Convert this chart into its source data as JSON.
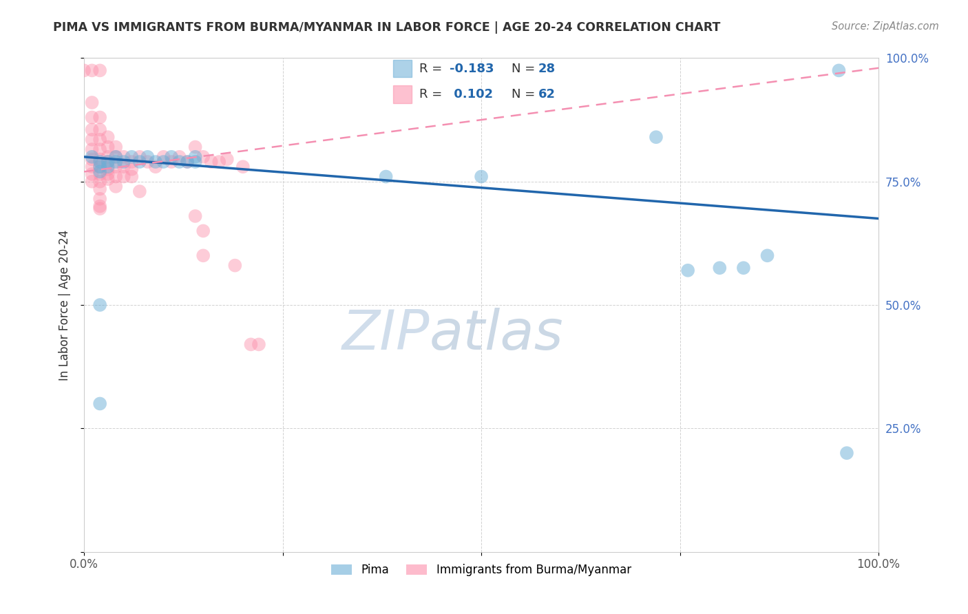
{
  "title": "PIMA VS IMMIGRANTS FROM BURMA/MYANMAR IN LABOR FORCE | AGE 20-24 CORRELATION CHART",
  "source": "Source: ZipAtlas.com",
  "ylabel": "In Labor Force | Age 20-24",
  "xlim": [
    0,
    1.0
  ],
  "ylim": [
    0,
    1.0
  ],
  "blue_color": "#6baed6",
  "pink_color": "#fc8faa",
  "blue_line_color": "#2166ac",
  "pink_line_color": "#f48fb1",
  "background_color": "#ffffff",
  "watermark_zip": "ZIP",
  "watermark_atlas": "atlas",
  "blue_points": [
    [
      0.01,
      0.8
    ],
    [
      0.02,
      0.79
    ],
    [
      0.02,
      0.78
    ],
    [
      0.02,
      0.77
    ],
    [
      0.03,
      0.79
    ],
    [
      0.03,
      0.78
    ],
    [
      0.04,
      0.8
    ],
    [
      0.04,
      0.79
    ],
    [
      0.05,
      0.79
    ],
    [
      0.06,
      0.8
    ],
    [
      0.07,
      0.79
    ],
    [
      0.08,
      0.8
    ],
    [
      0.09,
      0.79
    ],
    [
      0.1,
      0.79
    ],
    [
      0.11,
      0.8
    ],
    [
      0.12,
      0.79
    ],
    [
      0.13,
      0.79
    ],
    [
      0.14,
      0.8
    ],
    [
      0.14,
      0.79
    ],
    [
      0.38,
      0.76
    ],
    [
      0.5,
      0.76
    ],
    [
      0.72,
      0.84
    ],
    [
      0.76,
      0.57
    ],
    [
      0.8,
      0.575
    ],
    [
      0.83,
      0.575
    ],
    [
      0.86,
      0.6
    ],
    [
      0.95,
      0.975
    ],
    [
      0.96,
      0.2
    ],
    [
      0.02,
      0.5
    ],
    [
      0.02,
      0.3
    ]
  ],
  "pink_points": [
    [
      0.0,
      0.975
    ],
    [
      0.01,
      0.975
    ],
    [
      0.01,
      0.91
    ],
    [
      0.01,
      0.88
    ],
    [
      0.01,
      0.855
    ],
    [
      0.01,
      0.835
    ],
    [
      0.01,
      0.815
    ],
    [
      0.01,
      0.795
    ],
    [
      0.01,
      0.78
    ],
    [
      0.01,
      0.765
    ],
    [
      0.01,
      0.75
    ],
    [
      0.02,
      0.975
    ],
    [
      0.02,
      0.88
    ],
    [
      0.02,
      0.855
    ],
    [
      0.02,
      0.835
    ],
    [
      0.02,
      0.815
    ],
    [
      0.02,
      0.795
    ],
    [
      0.02,
      0.78
    ],
    [
      0.02,
      0.765
    ],
    [
      0.02,
      0.75
    ],
    [
      0.02,
      0.735
    ],
    [
      0.02,
      0.715
    ],
    [
      0.02,
      0.695
    ],
    [
      0.03,
      0.84
    ],
    [
      0.03,
      0.82
    ],
    [
      0.03,
      0.8
    ],
    [
      0.03,
      0.79
    ],
    [
      0.03,
      0.775
    ],
    [
      0.03,
      0.755
    ],
    [
      0.04,
      0.82
    ],
    [
      0.04,
      0.8
    ],
    [
      0.04,
      0.78
    ],
    [
      0.04,
      0.76
    ],
    [
      0.05,
      0.8
    ],
    [
      0.05,
      0.78
    ],
    [
      0.06,
      0.79
    ],
    [
      0.06,
      0.775
    ],
    [
      0.07,
      0.8
    ],
    [
      0.07,
      0.73
    ],
    [
      0.08,
      0.79
    ],
    [
      0.09,
      0.78
    ],
    [
      0.1,
      0.8
    ],
    [
      0.11,
      0.79
    ],
    [
      0.12,
      0.8
    ],
    [
      0.13,
      0.79
    ],
    [
      0.14,
      0.82
    ],
    [
      0.14,
      0.68
    ],
    [
      0.15,
      0.8
    ],
    [
      0.15,
      0.65
    ],
    [
      0.15,
      0.6
    ],
    [
      0.16,
      0.79
    ],
    [
      0.17,
      0.79
    ],
    [
      0.18,
      0.795
    ],
    [
      0.19,
      0.58
    ],
    [
      0.2,
      0.78
    ],
    [
      0.21,
      0.42
    ],
    [
      0.22,
      0.42
    ],
    [
      0.03,
      0.765
    ],
    [
      0.05,
      0.76
    ],
    [
      0.06,
      0.76
    ],
    [
      0.04,
      0.74
    ],
    [
      0.02,
      0.7
    ]
  ]
}
